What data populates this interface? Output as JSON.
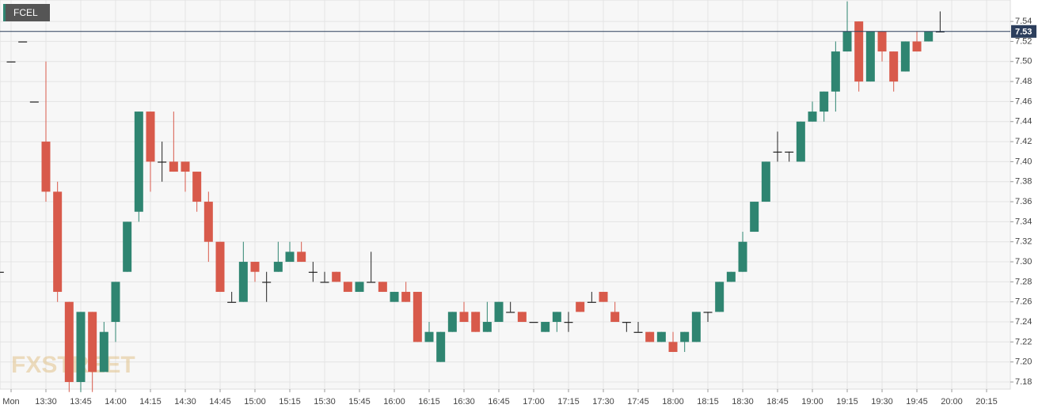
{
  "chart_data": {
    "type": "candlestick",
    "name": "FCEL",
    "watermark": "FXSTREET",
    "categories": [
      null,
      "Mon",
      null,
      null,
      "13:30",
      null,
      null,
      "13:45",
      null,
      null,
      "14:00",
      null,
      null,
      "14:15",
      null,
      null,
      "14:30",
      null,
      null,
      "14:45",
      null,
      null,
      "15:00",
      null,
      null,
      "15:15",
      null,
      null,
      "15:30",
      null,
      null,
      "15:45",
      null,
      null,
      "16:00",
      null,
      null,
      "16:15",
      null,
      null,
      "16:30",
      null,
      null,
      "16:45",
      null,
      null,
      "17:00",
      null,
      null,
      "17:15",
      null,
      null,
      "17:30",
      null,
      null,
      "17:45",
      null,
      null,
      "18:00",
      null,
      null,
      "18:15",
      null,
      null,
      "18:30",
      null,
      null,
      "18:45",
      null,
      null,
      "19:00",
      null,
      null,
      "19:15",
      null,
      null,
      "19:30",
      null,
      null,
      "19:45",
      null,
      null,
      "20:00",
      null,
      null,
      "20:15"
    ],
    "open": [
      7.29,
      7.5,
      7.52,
      7.46,
      7.42,
      7.37,
      7.26,
      7.18,
      7.25,
      7.19,
      7.24,
      7.29,
      7.35,
      7.45,
      7.4,
      7.4,
      7.4,
      7.39,
      7.36,
      7.32,
      7.26,
      7.26,
      7.3,
      7.28,
      7.29,
      7.3,
      7.31,
      7.29,
      7.28,
      7.29,
      7.28,
      7.27,
      7.28,
      7.28,
      7.26,
      7.27,
      7.27,
      7.22,
      7.2,
      7.23,
      7.25,
      7.25,
      7.23,
      7.24,
      7.25,
      7.25,
      7.24,
      7.23,
      7.24,
      7.24,
      7.26,
      7.26,
      7.27,
      7.25,
      7.24,
      7.23,
      7.23,
      7.22,
      7.22,
      7.22,
      7.22,
      7.25,
      7.25,
      7.28,
      7.29,
      7.33,
      7.36,
      7.41,
      7.41,
      7.4,
      7.44,
      7.45,
      7.47,
      7.51,
      7.54,
      7.48,
      7.53,
      7.51,
      7.49,
      7.52,
      7.52,
      7.53,
      null,
      null,
      null,
      null
    ],
    "high": [
      7.29,
      7.5,
      7.52,
      7.46,
      7.5,
      7.38,
      7.26,
      7.25,
      7.25,
      7.24,
      7.28,
      7.34,
      7.45,
      7.45,
      7.42,
      7.45,
      7.4,
      7.39,
      7.37,
      7.32,
      7.27,
      7.32,
      7.3,
      7.29,
      7.32,
      7.32,
      7.32,
      7.3,
      7.29,
      7.29,
      7.28,
      7.28,
      7.31,
      7.28,
      7.27,
      7.28,
      7.27,
      7.24,
      7.23,
      7.25,
      7.26,
      7.25,
      7.26,
      7.26,
      7.26,
      7.25,
      7.24,
      7.24,
      7.25,
      7.25,
      7.26,
      7.27,
      7.27,
      7.26,
      7.24,
      7.24,
      7.23,
      7.23,
      7.23,
      7.23,
      7.25,
      7.25,
      7.28,
      7.29,
      7.33,
      7.36,
      7.4,
      7.43,
      7.41,
      7.44,
      7.46,
      7.47,
      7.52,
      7.56,
      7.54,
      7.53,
      7.53,
      7.51,
      7.52,
      7.53,
      7.53,
      7.55,
      null,
      null,
      null,
      null
    ],
    "low": [
      7.29,
      7.5,
      7.52,
      7.46,
      7.36,
      7.26,
      7.17,
      7.17,
      7.17,
      7.19,
      7.22,
      7.29,
      7.34,
      7.37,
      7.38,
      7.39,
      7.37,
      7.35,
      7.3,
      7.27,
      7.26,
      7.26,
      7.28,
      7.26,
      7.29,
      7.3,
      7.3,
      7.28,
      7.28,
      7.28,
      7.27,
      7.27,
      7.28,
      7.27,
      7.26,
      7.26,
      7.22,
      7.22,
      7.2,
      7.23,
      7.24,
      7.23,
      7.23,
      7.24,
      7.25,
      7.24,
      7.24,
      7.23,
      7.23,
      7.23,
      7.25,
      7.26,
      7.26,
      7.24,
      7.23,
      7.23,
      7.22,
      7.22,
      7.21,
      7.21,
      7.22,
      7.24,
      7.25,
      7.28,
      7.29,
      7.33,
      7.36,
      7.4,
      7.4,
      7.4,
      7.44,
      7.44,
      7.45,
      7.51,
      7.47,
      7.48,
      7.5,
      7.47,
      7.49,
      7.51,
      7.52,
      7.53,
      null,
      null,
      null,
      null
    ],
    "close": [
      7.29,
      7.5,
      7.52,
      7.46,
      7.37,
      7.27,
      7.18,
      7.25,
      7.19,
      7.23,
      7.28,
      7.34,
      7.45,
      7.4,
      7.4,
      7.39,
      7.39,
      7.36,
      7.32,
      7.27,
      7.26,
      7.3,
      7.29,
      7.28,
      7.3,
      7.31,
      7.3,
      7.29,
      7.28,
      7.28,
      7.27,
      7.28,
      7.28,
      7.27,
      7.27,
      7.26,
      7.22,
      7.23,
      7.23,
      7.25,
      7.24,
      7.23,
      7.24,
      7.26,
      7.25,
      7.24,
      7.24,
      7.24,
      7.25,
      7.24,
      7.25,
      7.26,
      7.26,
      7.24,
      7.24,
      7.23,
      7.22,
      7.23,
      7.21,
      7.23,
      7.25,
      7.25,
      7.28,
      7.29,
      7.32,
      7.36,
      7.4,
      7.41,
      7.41,
      7.44,
      7.45,
      7.47,
      7.51,
      7.53,
      7.48,
      7.53,
      7.51,
      7.48,
      7.52,
      7.51,
      7.53,
      7.53,
      null,
      null,
      null,
      null
    ],
    "up_color": "#2f8571",
    "down_color": "#d85a4b",
    "doji_color": "#222222",
    "last": 7.53,
    "last_color": "#2c3e5c",
    "ylim": [
      7.1729,
      7.5614
    ],
    "yticks": [
      7.18,
      {
        "value": 7.2,
        "label": "7.20"
      },
      7.22,
      7.24,
      7.26,
      7.28,
      {
        "value": 7.3,
        "label": "7.30"
      },
      7.32,
      7.34,
      7.36,
      7.38,
      {
        "value": 7.4,
        "label": "7.40"
      },
      7.42,
      7.44,
      7.46,
      7.48,
      {
        "value": 7.5,
        "label": "7.50"
      },
      7.52,
      7.54
    ],
    "grid": true
  }
}
